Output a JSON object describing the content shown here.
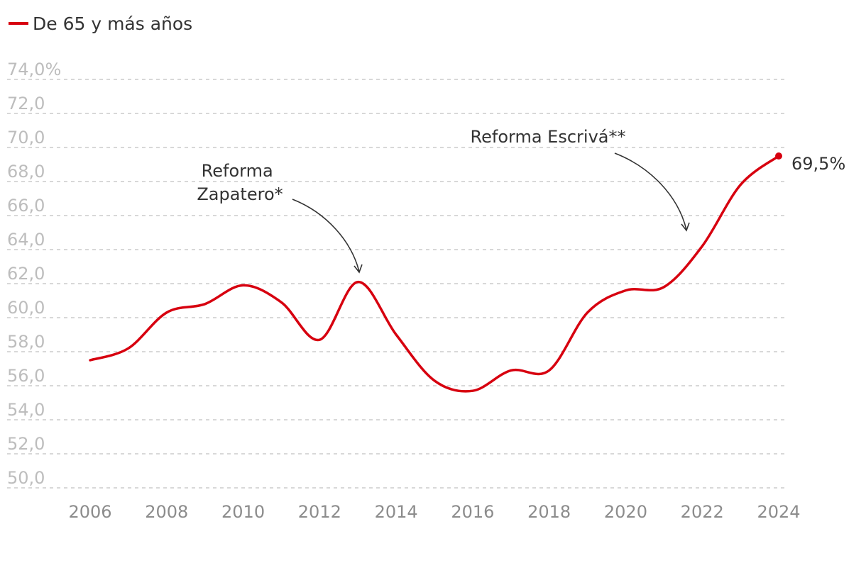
{
  "legend": {
    "label": "De 65 y más años",
    "color": "#d7000f"
  },
  "chart_data": {
    "type": "line",
    "series": [
      {
        "name": "De 65 y más años",
        "color": "#d7000f",
        "x": [
          2006,
          2007,
          2008,
          2009,
          2010,
          2011,
          2012,
          2013,
          2014,
          2015,
          2016,
          2017,
          2018,
          2019,
          2020,
          2021,
          2022,
          2023,
          2024
        ],
        "y": [
          57.5,
          58.2,
          60.3,
          60.8,
          61.9,
          60.9,
          58.7,
          62.1,
          59.0,
          56.3,
          55.7,
          56.9,
          56.9,
          60.3,
          61.6,
          61.8,
          64.2,
          67.8,
          69.5
        ]
      }
    ],
    "ylim": [
      50,
      74
    ],
    "xlim": [
      2006,
      2024
    ],
    "yticks": [
      50,
      52,
      54,
      56,
      58,
      60,
      62,
      64,
      66,
      68,
      70,
      72,
      74
    ],
    "ytick_labels": [
      "50,0",
      "52,0",
      "54,0",
      "56,0",
      "58,0",
      "60,0",
      "62,0",
      "64,0",
      "66,0",
      "68,0",
      "70,0",
      "72,0",
      "74,0%"
    ],
    "xticks": [
      2006,
      2008,
      2010,
      2012,
      2014,
      2016,
      2018,
      2020,
      2022,
      2024
    ],
    "xtick_labels": [
      "2006",
      "2008",
      "2010",
      "2012",
      "2014",
      "2016",
      "2018",
      "2020",
      "2022",
      "2024"
    ],
    "grid": true,
    "legend_position": "top-left",
    "end_label": "69,5%",
    "annotations": [
      {
        "lines": [
          "Reforma",
          "Zapatero*"
        ],
        "x": 2013,
        "y": 62.1
      },
      {
        "lines": [
          "Reforma Escrivá**"
        ],
        "x": 2021.7,
        "y": 64.9
      }
    ]
  }
}
